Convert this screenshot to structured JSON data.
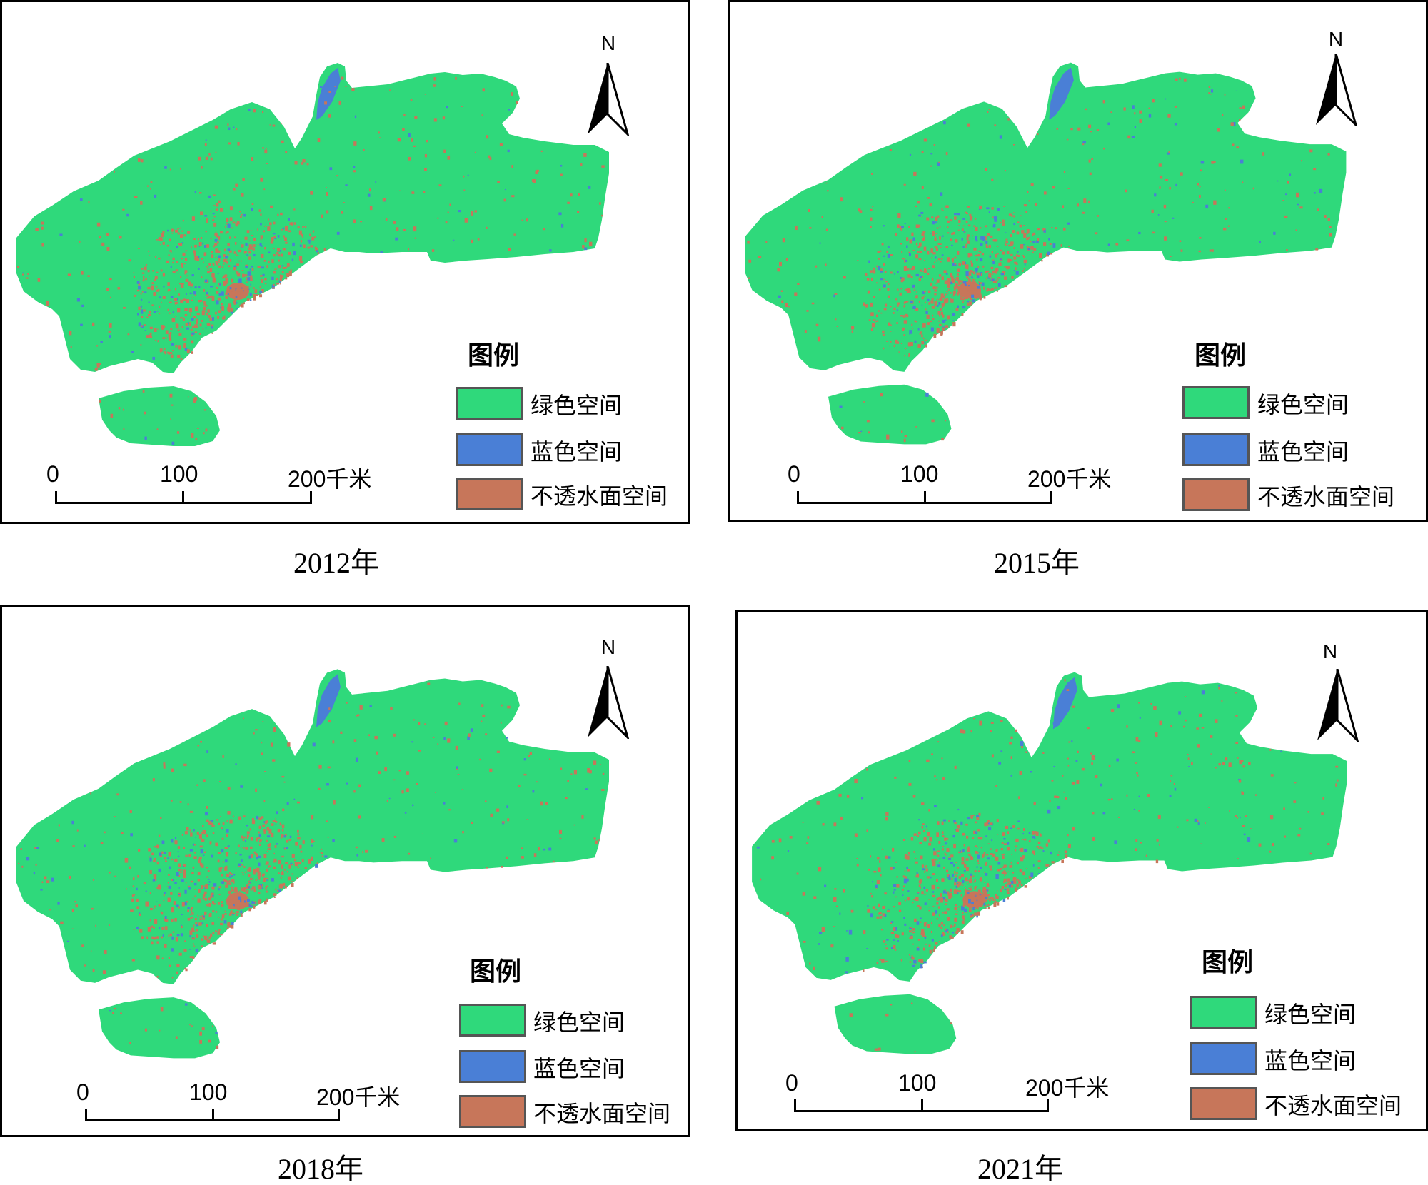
{
  "colors": {
    "green_space": "#2fd97b",
    "blue_space": "#4a7fd6",
    "impervious_space": "#c7765a"
  },
  "north_label": "N",
  "legend": {
    "title": "图例",
    "items": [
      {
        "key": "green_space",
        "label": "绿色空间"
      },
      {
        "key": "blue_space",
        "label": "蓝色空间"
      },
      {
        "key": "impervious_space",
        "label": "不透水面空间"
      }
    ]
  },
  "scale_bar": {
    "ticks": [
      "0",
      "100",
      "200千米"
    ]
  },
  "panels": [
    {
      "caption": "2012年"
    },
    {
      "caption": "2015年"
    },
    {
      "caption": "2018年"
    },
    {
      "caption": "2021年"
    }
  ]
}
